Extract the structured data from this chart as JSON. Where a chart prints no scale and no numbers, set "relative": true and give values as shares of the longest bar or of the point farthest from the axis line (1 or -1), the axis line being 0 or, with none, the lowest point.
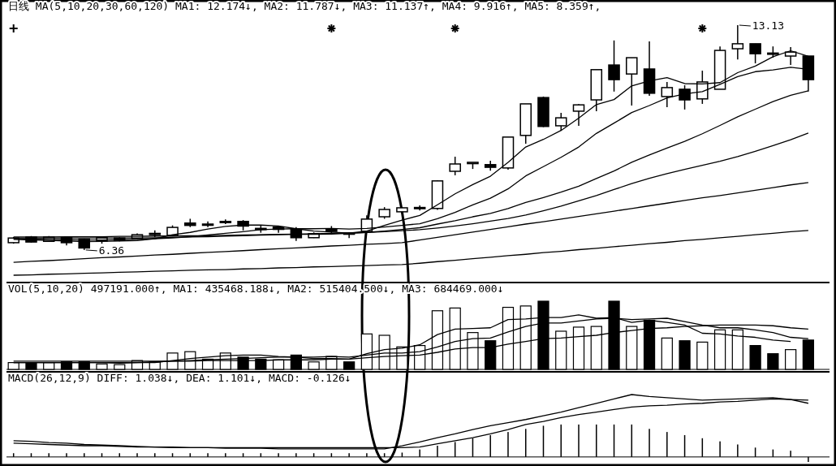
{
  "chart_data": [
    {
      "type": "candlestick",
      "title": "日线 MA(5,10,20,30,60,120) MA1: 12.174↓, MA2: 11.787↓, MA3: 11.137↑, MA4: 9.916↑, MA5: 8.359↑,",
      "categories": [
        null,
        null,
        null,
        null,
        null,
        null,
        null,
        null,
        null,
        null,
        null,
        null,
        null,
        null,
        null,
        null,
        null,
        null,
        null,
        null,
        null,
        null,
        null,
        null,
        null,
        null,
        null,
        null,
        null,
        null,
        null,
        null,
        null,
        null,
        null,
        null,
        null,
        null,
        null,
        null,
        null,
        null,
        null,
        null,
        null,
        null
      ],
      "ohlc": [
        [
          6.58,
          6.75,
          6.55,
          6.72
        ],
        [
          6.75,
          6.78,
          6.58,
          6.6
        ],
        [
          6.62,
          6.78,
          6.6,
          6.75
        ],
        [
          6.74,
          6.77,
          6.5,
          6.58
        ],
        [
          6.68,
          6.7,
          6.36,
          6.42
        ],
        [
          6.63,
          6.75,
          6.55,
          6.73
        ],
        [
          6.72,
          6.74,
          6.62,
          6.65
        ],
        [
          6.7,
          6.86,
          6.68,
          6.82
        ],
        [
          6.85,
          6.95,
          6.75,
          6.86
        ],
        [
          6.8,
          7.1,
          6.78,
          7.04
        ],
        [
          7.17,
          7.3,
          7.05,
          7.1
        ],
        [
          7.12,
          7.22,
          7.05,
          7.14
        ],
        [
          7.22,
          7.28,
          7.14,
          7.2
        ],
        [
          7.22,
          7.26,
          6.95,
          7.08
        ],
        [
          6.99,
          7.1,
          6.88,
          7.01
        ],
        [
          7.05,
          7.08,
          6.88,
          6.98
        ],
        [
          6.99,
          7.05,
          6.63,
          6.73
        ],
        [
          6.73,
          6.89,
          6.72,
          6.85
        ],
        [
          6.99,
          7.08,
          6.86,
          6.92
        ],
        [
          6.86,
          6.89,
          6.72,
          6.87
        ],
        [
          6.92,
          7.4,
          6.88,
          7.29
        ],
        [
          7.36,
          7.65,
          7.3,
          7.58
        ],
        [
          7.51,
          7.65,
          7.45,
          7.63
        ],
        [
          7.62,
          7.7,
          7.55,
          7.64
        ],
        [
          7.61,
          8.46,
          7.57,
          8.44
        ],
        [
          8.73,
          9.17,
          8.61,
          8.95
        ],
        [
          8.96,
          9.0,
          8.8,
          9.0
        ],
        [
          8.93,
          9.05,
          8.75,
          8.85
        ],
        [
          8.83,
          9.76,
          8.78,
          9.76
        ],
        [
          9.81,
          10.76,
          9.56,
          10.76
        ],
        [
          10.95,
          10.98,
          10.06,
          10.08
        ],
        [
          10.1,
          10.49,
          9.95,
          10.34
        ],
        [
          10.54,
          10.75,
          10.1,
          10.73
        ],
        [
          10.88,
          11.79,
          10.54,
          11.79
        ],
        [
          11.93,
          12.67,
          11.13,
          11.49
        ],
        [
          11.66,
          12.15,
          10.71,
          12.15
        ],
        [
          11.81,
          12.64,
          11.0,
          11.08
        ],
        [
          10.98,
          11.42,
          10.66,
          11.25
        ],
        [
          11.2,
          11.32,
          10.59,
          10.88
        ],
        [
          10.91,
          11.76,
          10.76,
          11.42
        ],
        [
          11.2,
          12.49,
          11.2,
          12.37
        ],
        [
          12.42,
          13.13,
          12.1,
          12.57
        ],
        [
          12.57,
          12.57,
          11.98,
          12.27
        ],
        [
          12.27,
          12.49,
          12.15,
          12.29
        ],
        [
          12.2,
          12.47,
          11.93,
          12.32
        ],
        [
          12.2,
          12.2,
          11.13,
          11.49
        ]
      ],
      "series": [
        {
          "type": "line",
          "color": "#000000",
          "values": [
            6.68,
            6.66,
            6.65,
            6.63,
            6.61,
            6.62,
            6.63,
            6.64,
            6.7,
            6.82,
            6.89,
            6.99,
            7.07,
            7.11,
            7.11,
            7.08,
            7.0,
            6.93,
            6.9,
            6.87,
            6.93,
            7.1,
            7.26,
            7.4,
            7.72,
            8.05,
            8.33,
            8.58,
            9.0,
            9.46,
            9.69,
            9.96,
            10.33,
            10.74,
            10.89,
            11.3,
            11.45,
            11.55,
            11.37,
            11.36,
            11.4,
            11.7,
            11.9,
            12.18,
            12.36,
            12.19
          ]
        },
        {
          "type": "line",
          "color": "#000000",
          "values": [
            6.7,
            6.69,
            6.68,
            6.67,
            6.66,
            6.66,
            6.67,
            6.68,
            6.7,
            6.72,
            6.76,
            6.81,
            6.86,
            6.91,
            6.97,
            6.99,
            7.0,
            7.0,
            7.01,
            6.99,
            7.01,
            7.05,
            7.1,
            7.15,
            7.3,
            7.49,
            7.72,
            7.92,
            8.2,
            8.59,
            8.87,
            9.15,
            9.46,
            9.87,
            10.18,
            10.5,
            10.71,
            10.94,
            11.06,
            11.13,
            11.35,
            11.58,
            11.73,
            11.78,
            11.86,
            11.8
          ]
        },
        {
          "type": "line",
          "color": "#000000",
          "values": [
            6.72,
            6.72,
            6.72,
            6.72,
            6.72,
            6.72,
            6.72,
            6.72,
            6.73,
            6.74,
            6.75,
            6.76,
            6.78,
            6.79,
            6.81,
            6.82,
            6.83,
            6.83,
            6.84,
            6.86,
            6.89,
            6.93,
            6.98,
            7.03,
            7.14,
            7.24,
            7.36,
            7.46,
            7.61,
            7.79,
            7.94,
            8.1,
            8.28,
            8.51,
            8.74,
            9.0,
            9.22,
            9.43,
            9.63,
            9.86,
            10.11,
            10.37,
            10.6,
            10.83,
            11.02,
            11.15
          ]
        },
        {
          "type": "line",
          "color": "#000000",
          "values": [
            6.75,
            6.75,
            6.75,
            6.76,
            6.76,
            6.76,
            6.77,
            6.77,
            6.78,
            6.78,
            6.79,
            6.79,
            6.8,
            6.81,
            6.82,
            6.83,
            6.84,
            6.85,
            6.86,
            6.87,
            6.89,
            6.91,
            6.94,
            6.97,
            7.02,
            7.08,
            7.15,
            7.23,
            7.31,
            7.41,
            7.54,
            7.68,
            7.84,
            8.0,
            8.18,
            8.36,
            8.52,
            8.66,
            8.79,
            8.91,
            9.03,
            9.17,
            9.33,
            9.5,
            9.68,
            9.88
          ]
        },
        {
          "type": "line",
          "color": "#000000",
          "values": [
            5.99,
            6.02,
            6.04,
            6.07,
            6.1,
            6.13,
            6.15,
            6.18,
            6.21,
            6.23,
            6.26,
            6.29,
            6.31,
            6.34,
            6.37,
            6.4,
            6.42,
            6.45,
            6.48,
            6.5,
            6.53,
            6.55,
            6.58,
            6.66,
            6.74,
            6.82,
            6.9,
            6.98,
            7.06,
            7.14,
            7.21,
            7.29,
            7.37,
            7.45,
            7.53,
            7.61,
            7.69,
            7.77,
            7.85,
            7.93,
            8.0,
            8.08,
            8.16,
            8.24,
            8.32,
            8.39
          ]
        },
        {
          "type": "line",
          "color": "#000000",
          "values": [
            5.6,
            5.61,
            5.63,
            5.64,
            5.66,
            5.67,
            5.69,
            5.7,
            5.72,
            5.73,
            5.75,
            5.76,
            5.77,
            5.79,
            5.8,
            5.82,
            5.83,
            5.85,
            5.86,
            5.88,
            5.89,
            5.91,
            5.92,
            5.96,
            6.01,
            6.05,
            6.1,
            6.14,
            6.19,
            6.23,
            6.28,
            6.32,
            6.37,
            6.41,
            6.46,
            6.5,
            6.55,
            6.59,
            6.64,
            6.68,
            6.73,
            6.77,
            6.82,
            6.86,
            6.91,
            6.95
          ]
        }
      ],
      "annotations": [
        "13.13",
        "6.36"
      ]
    },
    {
      "type": "bar",
      "relative": true,
      "title": "VOL(5,10,20) 497191.000↑, MA1: 435468.188↓, MA2: 515404.500↓, MA3: 684469.000↓",
      "categories": [
        null,
        null,
        null,
        null,
        null,
        null,
        null,
        null,
        null,
        null,
        null,
        null,
        null,
        null,
        null,
        null,
        null,
        null,
        null,
        null,
        null,
        null,
        null,
        null,
        null,
        null,
        null,
        null,
        null,
        null,
        null,
        null,
        null,
        null,
        null,
        null,
        null,
        null,
        null,
        null,
        null,
        null,
        null,
        null,
        null,
        null
      ],
      "series": [
        {
          "type": "bar",
          "values": [
            0.1,
            0.09,
            0.1,
            0.11,
            0.11,
            0.08,
            0.07,
            0.13,
            0.11,
            0.24,
            0.26,
            0.15,
            0.24,
            0.18,
            0.15,
            0.14,
            0.21,
            0.11,
            0.19,
            0.11,
            0.52,
            0.5,
            0.33,
            0.35,
            0.86,
            0.9,
            0.54,
            0.42,
            0.91,
            0.93,
            1,
            0.56,
            0.62,
            0.63,
            1,
            0.63,
            0.72,
            0.46,
            0.42,
            0.4,
            0.58,
            0.58,
            0.35,
            0.23,
            0.29,
            0.43
          ],
          "colors": [
            "#ffffff",
            "#000000",
            "#ffffff",
            "#000000",
            "#000000",
            "#ffffff",
            "#ffffff",
            "#ffffff",
            "#ffffff",
            "#ffffff",
            "#ffffff",
            "#ffffff",
            "#ffffff",
            "#000000",
            "#000000",
            "#ffffff",
            "#000000",
            "#ffffff",
            "#ffffff",
            "#000000",
            "#ffffff",
            "#ffffff",
            "#ffffff",
            "#ffffff",
            "#ffffff",
            "#ffffff",
            "#ffffff",
            "#000000",
            "#ffffff",
            "#ffffff",
            "#000000",
            "#ffffff",
            "#ffffff",
            "#ffffff",
            "#000000",
            "#ffffff",
            "#000000",
            "#ffffff",
            "#000000",
            "#ffffff",
            "#ffffff",
            "#ffffff",
            "#000000",
            "#000000",
            "#ffffff",
            "#000000"
          ]
        },
        {
          "type": "line",
          "color": "#000000",
          "values": [
            0.1,
            0.1,
            0.1,
            0.1,
            0.1,
            0.1,
            0.09,
            0.1,
            0.1,
            0.13,
            0.16,
            0.18,
            0.2,
            0.21,
            0.21,
            0.19,
            0.18,
            0.16,
            0.16,
            0.15,
            0.23,
            0.29,
            0.31,
            0.36,
            0.51,
            0.59,
            0.6,
            0.61,
            0.73,
            0.74,
            0.76,
            0.76,
            0.8,
            0.75,
            0.76,
            0.69,
            0.72,
            0.69,
            0.65,
            0.53,
            0.52,
            0.49,
            0.47,
            0.43,
            0.41,
            null
          ]
        },
        {
          "type": "line",
          "color": "#000000",
          "values": [
            0.1,
            0.1,
            0.1,
            0.1,
            0.1,
            0.1,
            0.1,
            0.1,
            0.11,
            0.12,
            0.13,
            0.14,
            0.15,
            0.16,
            0.17,
            0.18,
            0.18,
            0.18,
            0.19,
            0.18,
            0.21,
            0.24,
            0.24,
            0.26,
            0.33,
            0.41,
            0.45,
            0.46,
            0.55,
            0.63,
            0.68,
            0.68,
            0.71,
            0.74,
            0.75,
            0.73,
            0.74,
            0.75,
            0.7,
            0.65,
            0.61,
            0.61,
            0.58,
            0.54,
            0.47,
            0.45
          ]
        },
        {
          "type": "line",
          "color": "#000000",
          "values": [
            0.12,
            0.12,
            0.12,
            0.12,
            0.12,
            0.12,
            0.12,
            0.12,
            0.12,
            0.12,
            0.12,
            0.13,
            0.13,
            0.13,
            0.13,
            0.14,
            0.14,
            0.14,
            0.15,
            0.15,
            0.17,
            0.19,
            0.2,
            0.21,
            0.25,
            0.3,
            0.32,
            0.32,
            0.37,
            0.41,
            0.45,
            0.46,
            0.48,
            0.5,
            0.54,
            0.57,
            0.6,
            0.61,
            0.63,
            0.64,
            0.65,
            0.65,
            0.65,
            0.64,
            0.61,
            0.59
          ]
        }
      ]
    },
    {
      "type": "line",
      "relative": true,
      "title": "MACD(26,12,9) DIFF: 1.038↓, DEA: 1.101↓, MACD: -0.126↓",
      "categories": [
        null,
        null,
        null,
        null,
        null,
        null,
        null,
        null,
        null,
        null,
        null,
        null,
        null,
        null,
        null,
        null,
        null,
        null,
        null,
        null,
        null,
        null,
        null,
        null,
        null,
        null,
        null,
        null,
        null,
        null,
        null,
        null,
        null,
        null,
        null,
        null,
        null,
        null,
        null,
        null,
        null,
        null,
        null,
        null,
        null,
        null
      ],
      "series": [
        {
          "type": "bar",
          "color": "#000000",
          "values": [
            0.06,
            0.06,
            0.06,
            0.06,
            0.06,
            0.06,
            0.06,
            0.06,
            0.06,
            0.06,
            0.06,
            0.06,
            0.06,
            0.06,
            0.06,
            0.06,
            0.06,
            0.06,
            0.06,
            0.06,
            0.06,
            0.06,
            0.07,
            0.12,
            0.18,
            0.24,
            0.3,
            0.35,
            0.4,
            0.45,
            0.5,
            0.52,
            0.52,
            0.52,
            0.52,
            0.52,
            0.45,
            0.4,
            0.35,
            0.3,
            0.25,
            0.2,
            0.15,
            0.12,
            0.1,
            -0.08
          ]
        },
        {
          "type": "line",
          "color": "#000000",
          "values": [
            0.26,
            0.25,
            0.23,
            0.22,
            0.2,
            0.19,
            0.18,
            0.17,
            0.16,
            0.16,
            0.15,
            0.15,
            0.14,
            0.14,
            0.14,
            0.13,
            0.13,
            0.13,
            0.13,
            0.13,
            0.13,
            0.13,
            0.18,
            0.24,
            0.31,
            0.37,
            0.44,
            0.5,
            0.55,
            0.6,
            0.66,
            0.72,
            0.79,
            0.86,
            0.93,
            1.0,
            0.97,
            0.95,
            0.93,
            0.91,
            0.92,
            0.93,
            0.94,
            0.95,
            0.92,
            0.86
          ]
        },
        {
          "type": "line",
          "color": "#000000",
          "values": [
            0.22,
            0.21,
            0.2,
            0.19,
            0.18,
            0.18,
            0.17,
            0.16,
            0.16,
            0.15,
            0.15,
            0.15,
            0.15,
            0.15,
            0.15,
            0.15,
            0.15,
            0.15,
            0.15,
            0.15,
            0.15,
            0.15,
            0.15,
            0.16,
            0.21,
            0.26,
            0.31,
            0.37,
            0.44,
            0.52,
            0.57,
            0.63,
            0.68,
            0.72,
            0.76,
            0.8,
            0.82,
            0.83,
            0.85,
            0.86,
            0.88,
            0.89,
            0.91,
            0.93,
            0.92,
            0.91
          ]
        }
      ]
    }
  ]
}
